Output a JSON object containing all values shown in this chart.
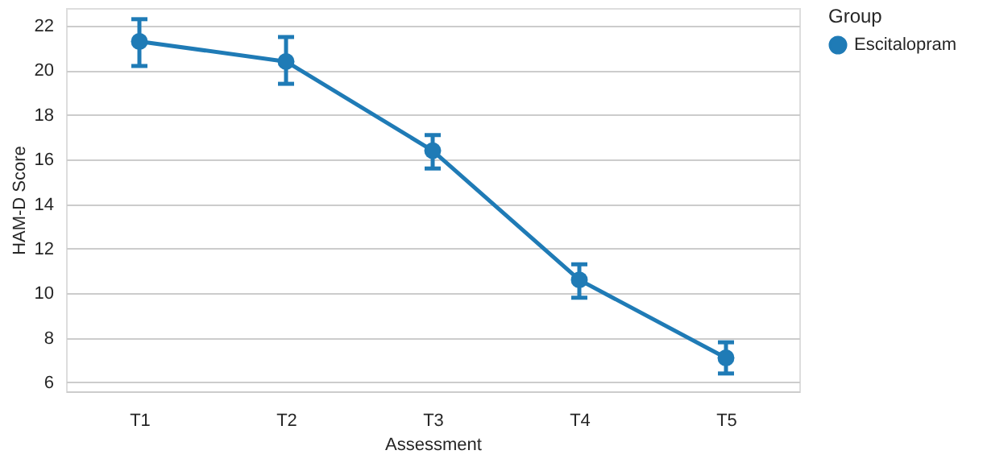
{
  "chart_data": {
    "type": "line",
    "xlabel": "Assessment",
    "ylabel": "HAM-D Score",
    "legend_title": "Group",
    "categories": [
      "T1",
      "T2",
      "T3",
      "T4",
      "T5"
    ],
    "series": [
      {
        "name": "Escitalopram",
        "color": "#1f7bb6",
        "values": [
          21.3,
          20.4,
          16.4,
          10.6,
          7.1
        ],
        "errors": [
          [
            20.2,
            22.3
          ],
          [
            19.4,
            21.5
          ],
          [
            15.6,
            17.1
          ],
          [
            9.8,
            11.3
          ],
          [
            6.4,
            7.8
          ]
        ]
      }
    ],
    "ylim": [
      5.6,
      22.8
    ],
    "yticks": [
      6,
      8,
      10,
      12,
      14,
      16,
      18,
      20,
      22
    ],
    "grid": "y",
    "legend": "right",
    "marker": "circle",
    "line_style": "solid"
  }
}
